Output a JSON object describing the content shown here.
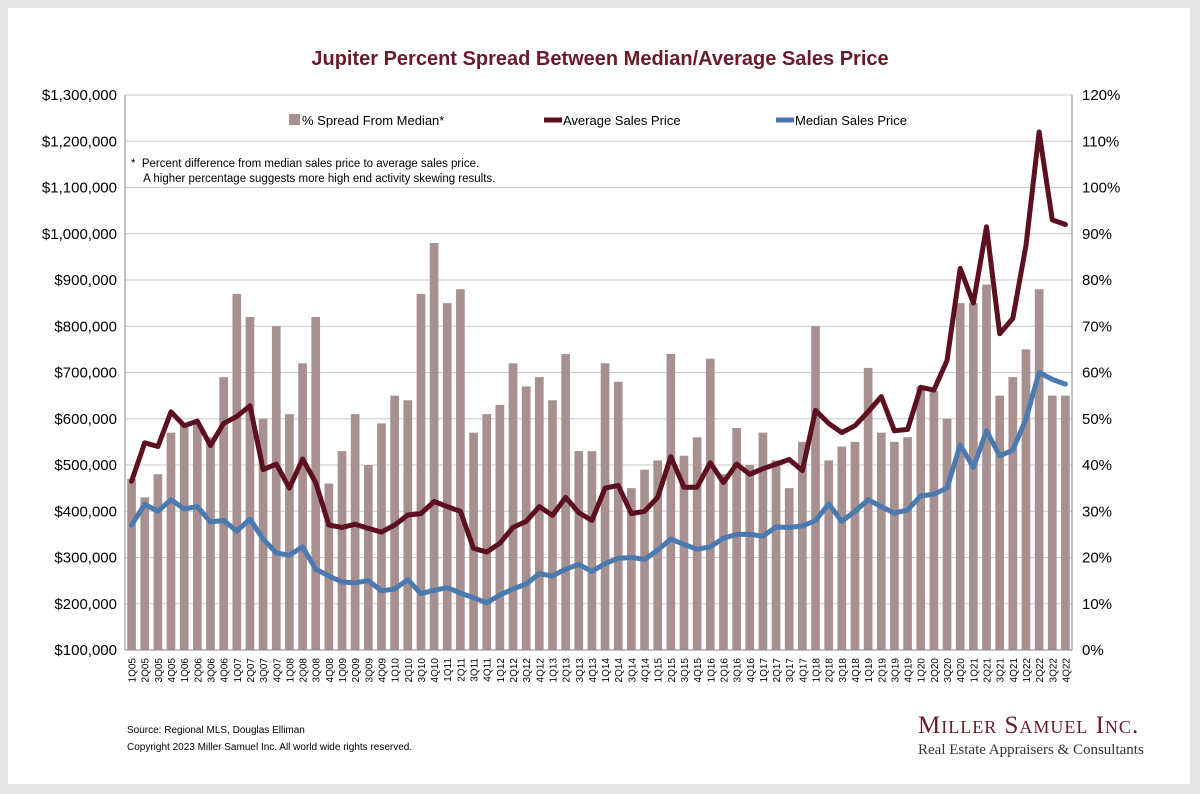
{
  "title": "Jupiter Percent Spread Between Median/Average Sales Price",
  "note": {
    "line1": "*  Percent difference from median sales price to average sales price.",
    "line2": "    A higher percentage suggests more high end activity skewing results."
  },
  "source": "Source: Regional MLS, Douglas Elliman",
  "copyright": "Copyright 2023 Miller Samuel Inc.  All world wide rights reserved.",
  "logo": {
    "name": "Miller Samuel Inc.",
    "tagline": "Real Estate Appraisers & Consultants"
  },
  "colors": {
    "bars": "#a89090",
    "average": "#5c1020",
    "median": "#4a7ab0",
    "title": "#6b1a2a"
  },
  "chart_data": {
    "type": "bar",
    "legend_position": "top",
    "grid": true,
    "y_left": {
      "min": 100000,
      "max": 1300000,
      "step": 100000,
      "ticks": [
        "$100,000",
        "$200,000",
        "$300,000",
        "$400,000",
        "$500,000",
        "$600,000",
        "$700,000",
        "$800,000",
        "$900,000",
        "$1,000,000",
        "$1,100,000",
        "$1,200,000",
        "$1,300,000"
      ]
    },
    "y_right": {
      "min": 0,
      "max": 120,
      "step": 10,
      "ticks": [
        "0%",
        "10%",
        "20%",
        "30%",
        "40%",
        "50%",
        "60%",
        "70%",
        "80%",
        "90%",
        "100%",
        "110%",
        "120%"
      ]
    },
    "categories": [
      "1Q05",
      "2Q05",
      "3Q05",
      "4Q05",
      "1Q06",
      "2Q06",
      "3Q06",
      "4Q06",
      "1Q07",
      "2Q07",
      "3Q07",
      "4Q07",
      "1Q08",
      "2Q08",
      "3Q08",
      "4Q08",
      "1Q09",
      "2Q09",
      "3Q09",
      "4Q09",
      "1Q10",
      "2Q10",
      "3Q10",
      "4Q10",
      "1Q11",
      "2Q11",
      "3Q11",
      "4Q11",
      "1Q12",
      "2Q12",
      "3Q12",
      "4Q12",
      "1Q13",
      "2Q13",
      "3Q13",
      "4Q13",
      "1Q14",
      "2Q14",
      "3Q14",
      "4Q14",
      "1Q15",
      "2Q15",
      "3Q15",
      "4Q15",
      "1Q16",
      "2Q16",
      "3Q16",
      "4Q16",
      "1Q17",
      "2Q17",
      "3Q17",
      "4Q17",
      "1Q18",
      "2Q18",
      "3Q18",
      "4Q18",
      "1Q19",
      "2Q19",
      "3Q19",
      "4Q19",
      "1Q20",
      "2Q20",
      "3Q20",
      "4Q20",
      "1Q21",
      "2Q21",
      "3Q21",
      "4Q21",
      "1Q22",
      "2Q22",
      "3Q22",
      "4Q22"
    ],
    "series": [
      {
        "name": "% Spread From Median*",
        "type": "bar",
        "axis": "right",
        "values": [
          37,
          33,
          38,
          47,
          49,
          49,
          46,
          59,
          77,
          72,
          50,
          70,
          51,
          62,
          72,
          36,
          43,
          51,
          40,
          49,
          55,
          54,
          77,
          88,
          75,
          78,
          47,
          51,
          53,
          62,
          57,
          59,
          54,
          64,
          43,
          43,
          62,
          58,
          35,
          39,
          41,
          64,
          42,
          46,
          63,
          38,
          48,
          40,
          47,
          41,
          35,
          45,
          70,
          41,
          44,
          45,
          61,
          47,
          45,
          46,
          57,
          56,
          50,
          75,
          75,
          79,
          55,
          59,
          65,
          78,
          55,
          55
        ]
      },
      {
        "name": "Average Sales Price",
        "type": "line",
        "axis": "left",
        "values": [
          465000,
          548000,
          540000,
          615000,
          585000,
          595000,
          542000,
          590000,
          605000,
          628000,
          490000,
          502000,
          450000,
          513000,
          462000,
          370000,
          365000,
          372000,
          363000,
          355000,
          370000,
          392000,
          395000,
          421000,
          410000,
          400000,
          320000,
          312000,
          331000,
          365000,
          378000,
          410000,
          391000,
          430000,
          397000,
          380000,
          450000,
          456000,
          395000,
          400000,
          430000,
          518000,
          452000,
          452000,
          505000,
          462000,
          502000,
          480000,
          492000,
          502000,
          512000,
          488000,
          618000,
          590000,
          570000,
          585000,
          615000,
          648000,
          574000,
          577000,
          668000,
          662000,
          726000,
          925000,
          850000,
          1015000,
          784000,
          817000,
          975000,
          1220000,
          1030000,
          1020000
        ]
      },
      {
        "name": "Median Sales Price",
        "type": "line",
        "axis": "left",
        "values": [
          370000,
          415000,
          400000,
          425000,
          405000,
          410000,
          377000,
          380000,
          357000,
          383000,
          340000,
          310000,
          305000,
          323000,
          275000,
          260000,
          247000,
          245000,
          250000,
          228000,
          232000,
          252000,
          222000,
          229000,
          235000,
          223000,
          213000,
          202000,
          219000,
          232000,
          243000,
          265000,
          260000,
          275000,
          285000,
          270000,
          287000,
          298000,
          300000,
          296000,
          316000,
          340000,
          328000,
          318000,
          323000,
          342000,
          350000,
          350000,
          346000,
          366000,
          365000,
          368000,
          380000,
          416000,
          378000,
          400000,
          425000,
          410000,
          396000,
          403000,
          433000,
          437000,
          450000,
          543000,
          495000,
          574000,
          520000,
          532000,
          600000,
          700000,
          685000,
          675000
        ]
      }
    ]
  }
}
